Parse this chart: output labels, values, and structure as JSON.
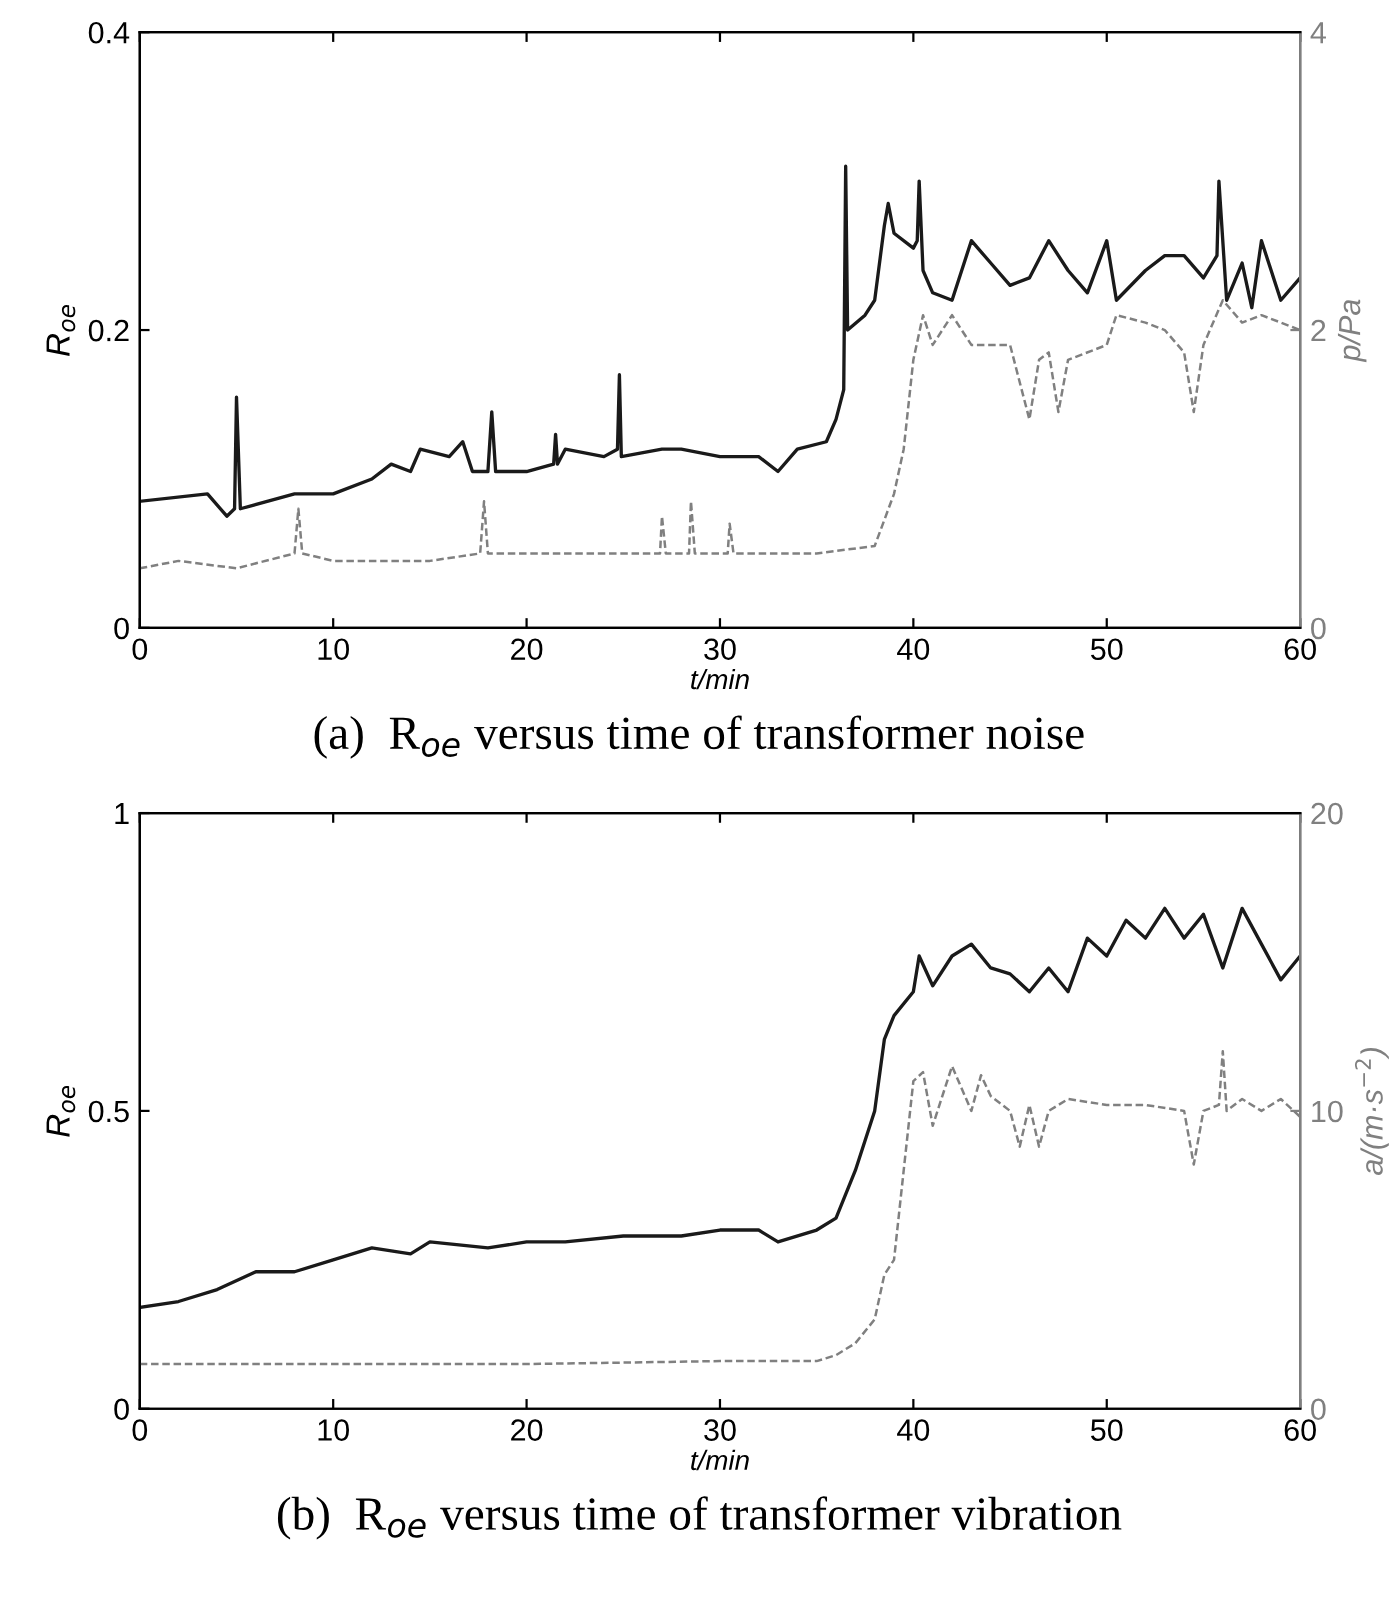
{
  "chart_data": [
    {
      "type": "line",
      "xlabel": "t/min",
      "ylabel": "R$_{oe}$",
      "y2label": "p/Pa",
      "annotations": [
        "(a)  R$_{oe}$ versus time of transformer noise"
      ],
      "xlim": [
        0,
        60
      ],
      "xticks": [
        0,
        10,
        20,
        30,
        40,
        50,
        60
      ],
      "ylim": [
        0,
        0.4
      ],
      "yticks": [
        0,
        0.2,
        0.4
      ],
      "y2lim": [
        0,
        4
      ],
      "y2ticks": [
        0,
        2,
        4
      ],
      "grid": false,
      "legend": false,
      "series": [
        {
          "color": "#1a1a1a",
          "line_style": "solid",
          "x": [
            0,
            3.5,
            4.5,
            4.9,
            5,
            5.2,
            8,
            10,
            12,
            13,
            14,
            14.5,
            16,
            16.7,
            17.2,
            18,
            18.2,
            18.4,
            20,
            21.4,
            21.5,
            21.6,
            22,
            24,
            24.7,
            24.8,
            24.9,
            27,
            28,
            30,
            32,
            33,
            34,
            35.5,
            36,
            36.4,
            36.5,
            36.6,
            37.5,
            38,
            38.5,
            38.7,
            39,
            40,
            40.2,
            40.3,
            40.5,
            41,
            42,
            43,
            44,
            45,
            46,
            47,
            48,
            49,
            50,
            50.5,
            52,
            53,
            54,
            55,
            55.7,
            55.8,
            56.2,
            57,
            57.5,
            58,
            59,
            60
          ],
          "values": [
            0.085,
            0.09,
            0.075,
            0.08,
            0.155,
            0.08,
            0.09,
            0.09,
            0.1,
            0.11,
            0.105,
            0.12,
            0.115,
            0.125,
            0.105,
            0.105,
            0.145,
            0.105,
            0.105,
            0.11,
            0.13,
            0.11,
            0.12,
            0.115,
            0.12,
            0.17,
            0.115,
            0.12,
            0.12,
            0.115,
            0.115,
            0.105,
            0.12,
            0.125,
            0.14,
            0.16,
            0.31,
            0.2,
            0.21,
            0.22,
            0.27,
            0.285,
            0.265,
            0.255,
            0.26,
            0.3,
            0.24,
            0.225,
            0.22,
            0.26,
            0.245,
            0.23,
            0.235,
            0.26,
            0.24,
            0.225,
            0.26,
            0.22,
            0.24,
            0.25,
            0.25,
            0.235,
            0.25,
            0.3,
            0.22,
            0.245,
            0.215,
            0.26,
            0.22,
            0.235
          ]
        },
        {
          "color": "#808080",
          "line_style": "dashed",
          "axis": "y2",
          "x": [
            0,
            2,
            5,
            8,
            8.2,
            8.4,
            10,
            15,
            17.6,
            17.8,
            18,
            20,
            25,
            26.9,
            27,
            27.2,
            28.4,
            28.5,
            28.7,
            30.4,
            30.5,
            30.7,
            35,
            38,
            39,
            39.5,
            40,
            40.5,
            41,
            42,
            43,
            45,
            46,
            46.5,
            47,
            47.5,
            48,
            50,
            50.5,
            52,
            53,
            54,
            54.5,
            55,
            56,
            57,
            58,
            59,
            60
          ],
          "values": [
            0.4,
            0.45,
            0.4,
            0.5,
            0.8,
            0.5,
            0.45,
            0.45,
            0.5,
            0.85,
            0.5,
            0.5,
            0.5,
            0.5,
            0.75,
            0.5,
            0.5,
            0.85,
            0.5,
            0.5,
            0.7,
            0.5,
            0.5,
            0.55,
            0.9,
            1.2,
            1.8,
            2.1,
            1.9,
            2.1,
            1.9,
            1.9,
            1.4,
            1.8,
            1.85,
            1.45,
            1.8,
            1.9,
            2.1,
            2.05,
            2.0,
            1.85,
            1.45,
            1.9,
            2.2,
            2.05,
            2.1,
            2.05,
            2.0
          ]
        }
      ]
    },
    {
      "type": "line",
      "xlabel": "t/min",
      "ylabel": "R$_{oe}$",
      "y2label": "a/(m·s$^{−2}$)",
      "annotations": [
        "(b)  R$_{oe}$ versus time of transformer vibration"
      ],
      "xlim": [
        0,
        60
      ],
      "xticks": [
        0,
        10,
        20,
        30,
        40,
        50,
        60
      ],
      "ylim": [
        0,
        1
      ],
      "yticks": [
        0,
        0.5,
        1
      ],
      "y2lim": [
        0,
        20
      ],
      "y2ticks": [
        0,
        10,
        20
      ],
      "grid": false,
      "legend": false,
      "series": [
        {
          "color": "#1a1a1a",
          "line_style": "solid",
          "x": [
            0,
            2,
            4,
            6,
            8,
            10,
            12,
            14,
            15,
            18,
            20,
            22,
            25,
            28,
            30,
            32,
            33,
            35,
            36,
            37,
            37.5,
            38,
            38.5,
            39,
            40,
            40.3,
            41,
            42,
            43,
            44,
            45,
            46,
            47,
            48,
            49,
            50,
            51,
            52,
            53,
            54,
            55,
            56,
            57,
            58,
            59,
            60
          ],
          "values": [
            0.17,
            0.18,
            0.2,
            0.23,
            0.23,
            0.25,
            0.27,
            0.26,
            0.28,
            0.27,
            0.28,
            0.28,
            0.29,
            0.29,
            0.3,
            0.3,
            0.28,
            0.3,
            0.32,
            0.4,
            0.45,
            0.5,
            0.62,
            0.66,
            0.7,
            0.76,
            0.71,
            0.76,
            0.78,
            0.74,
            0.73,
            0.7,
            0.74,
            0.7,
            0.79,
            0.76,
            0.82,
            0.79,
            0.84,
            0.79,
            0.83,
            0.74,
            0.84,
            0.78,
            0.72,
            0.76
          ]
        },
        {
          "color": "#808080",
          "line_style": "dashed",
          "axis": "y2",
          "x": [
            0,
            20,
            30,
            35,
            36,
            37,
            38,
            38.5,
            39,
            39.5,
            40,
            40.5,
            41,
            42,
            43,
            43.5,
            44,
            45,
            45.5,
            46,
            46.5,
            47,
            48,
            50,
            52,
            54,
            54.5,
            55,
            55.8,
            56,
            56.2,
            57,
            58,
            59,
            60
          ],
          "values": [
            1.5,
            1.5,
            1.6,
            1.6,
            1.8,
            2.2,
            3.0,
            4.5,
            5.0,
            8,
            11,
            11.3,
            9.5,
            11.5,
            10,
            11.2,
            10.5,
            10,
            8.8,
            10.2,
            8.8,
            10,
            10.4,
            10.2,
            10.2,
            10,
            8.2,
            10,
            10.2,
            12,
            10,
            10.4,
            10.0,
            10.4,
            9.8
          ]
        }
      ]
    }
  ]
}
